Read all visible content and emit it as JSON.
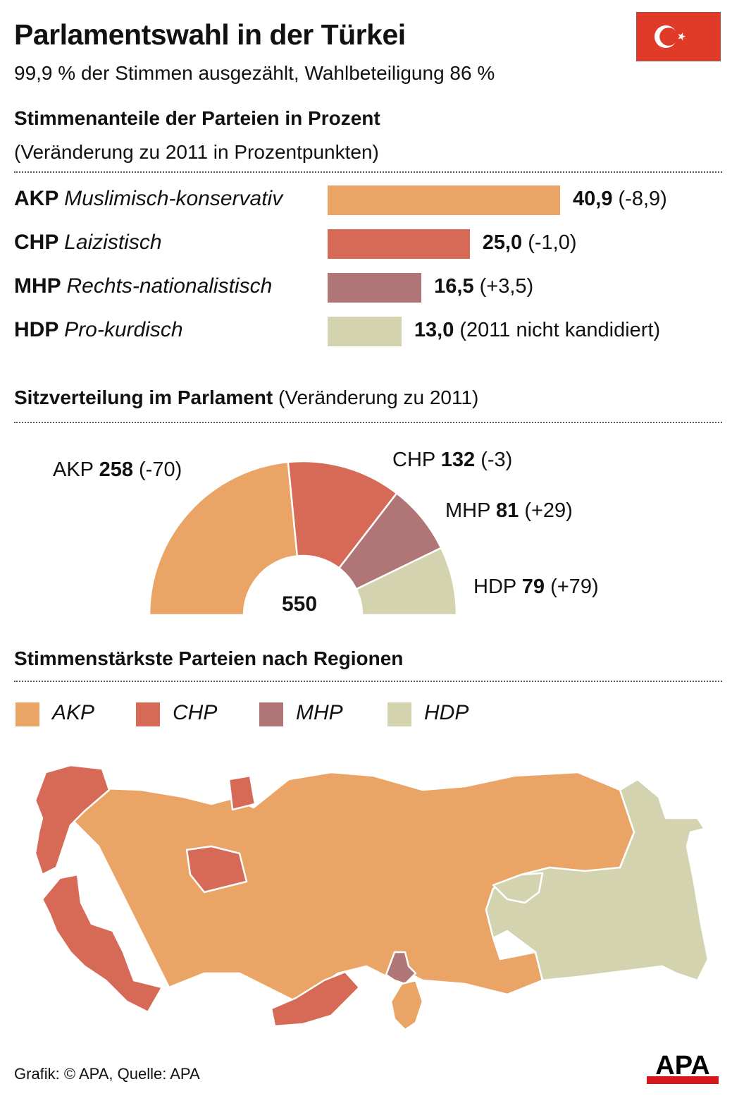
{
  "header": {
    "title": "Parlamentswahl in der Türkei",
    "subtitle": "99,9 % der Stimmen ausgezählt, Wahlbeteiligung 86 %",
    "flag_icon": "turkey-flag-icon"
  },
  "colors": {
    "AKP": "#e9a466",
    "CHP": "#d66a57",
    "MHP": "#b07577",
    "HDP": "#d4d3b0",
    "flag_red": "#e03a28",
    "apa_red": "#d7161c"
  },
  "votes": {
    "heading": "Stimmenanteile der Parteien in Prozent",
    "subheading": "(Veränderung zu 2011 in Prozentpunkten)",
    "parties": [
      {
        "party": "AKP",
        "desc": "Muslimisch-konservativ",
        "value_label": "40,9",
        "change": "(-8,9)"
      },
      {
        "party": "CHP",
        "desc": "Laizistisch",
        "value_label": "25,0",
        "change": "(-1,0)"
      },
      {
        "party": "MHP",
        "desc": "Rechts-nationalistisch",
        "value_label": "16,5",
        "change": "(+3,5)"
      },
      {
        "party": "HDP",
        "desc": "Pro-kurdisch",
        "value_label": "13,0",
        "change": "(2011 nicht kandidiert)"
      }
    ]
  },
  "seats": {
    "heading": "Sitzverteilung im Parlament",
    "subheading": "(Veränderung zu 2011)",
    "total": "550",
    "parties": [
      {
        "party": "AKP",
        "value_label": "258",
        "change": "(-70)"
      },
      {
        "party": "CHP",
        "value_label": "132",
        "change": "(-3)"
      },
      {
        "party": "MHP",
        "value_label": "81",
        "change": "(+29)"
      },
      {
        "party": "HDP",
        "value_label": "79",
        "change": "(+79)"
      }
    ]
  },
  "regions": {
    "heading": "Stimmenstärkste Parteien nach Regionen",
    "legend": [
      "AKP",
      "CHP",
      "MHP",
      "HDP"
    ]
  },
  "footer": {
    "credit": "Grafik: © APA, Quelle: APA",
    "logo": "APA"
  },
  "chart_data": [
    {
      "type": "bar",
      "title": "Stimmenanteile der Parteien in Prozent",
      "subtitle": "(Veränderung zu 2011 in Prozentpunkten)",
      "categories": [
        "AKP",
        "CHP",
        "MHP",
        "HDP"
      ],
      "values": [
        40.9,
        25.0,
        16.5,
        13.0
      ],
      "changes": [
        -8.9,
        -1.0,
        3.5,
        null
      ],
      "xlabel": "",
      "ylabel": "Prozent",
      "orientation": "horizontal",
      "grid": false
    },
    {
      "type": "pie",
      "variant": "half-donut",
      "title": "Sitzverteilung im Parlament",
      "subtitle": "(Veränderung zu 2011)",
      "categories": [
        "AKP",
        "CHP",
        "MHP",
        "HDP"
      ],
      "values": [
        258,
        132,
        81,
        79
      ],
      "changes": [
        -70,
        -3,
        29,
        79
      ],
      "total": 550
    },
    {
      "type": "heatmap",
      "variant": "choropleth-map",
      "title": "Stimmenstärkste Parteien nach Regionen",
      "legend": [
        "AKP",
        "CHP",
        "MHP",
        "HDP"
      ],
      "legend_position": "top-left"
    }
  ]
}
